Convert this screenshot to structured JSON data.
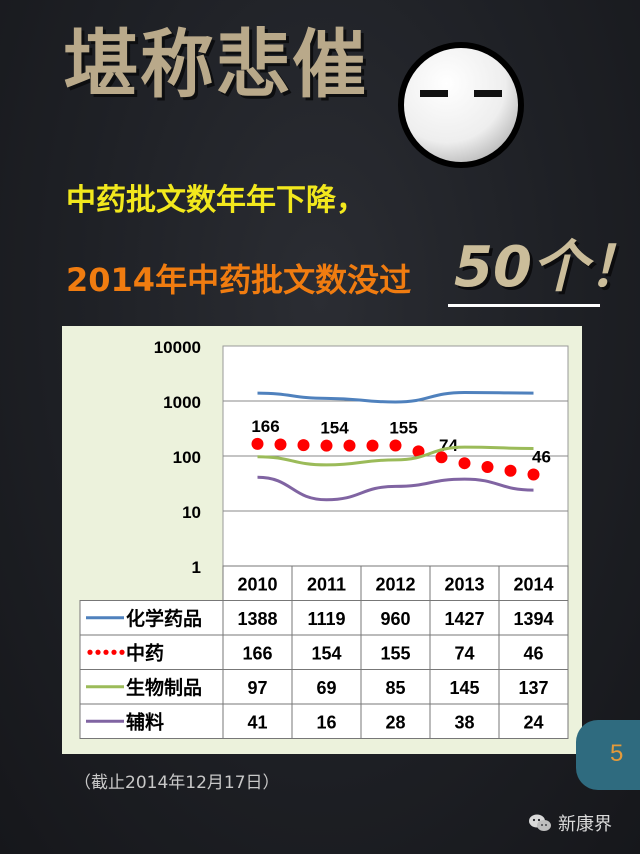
{
  "title": "堪称悲催",
  "subtitle_line1": "中药批文数年年下降，",
  "subtitle_line2": "2014年中药批文数没过",
  "highlight": "50个！",
  "page_number": "5",
  "footnote": "（截止2014年12月17日）",
  "brand": "新康界",
  "colors": {
    "background": "#1e2025",
    "title": "#b9a98a",
    "line1": "#f2e81d",
    "line2": "#f07c10",
    "chart_bg": "#ecf2dc",
    "page_badge": "#2f6b7f"
  },
  "chart_data": {
    "type": "line",
    "y_scale": "log",
    "ylim": [
      1,
      10000
    ],
    "y_ticks": [
      "1",
      "10",
      "100",
      "1000",
      "10000"
    ],
    "categories": [
      "2010",
      "2011",
      "2012",
      "2013",
      "2014"
    ],
    "series": [
      {
        "name": "化学药品",
        "color": "#4f81bd",
        "style": "solid",
        "values": [
          1388,
          1119,
          960,
          1427,
          1394
        ]
      },
      {
        "name": "中药",
        "color": "#ff0000",
        "style": "dotted",
        "values": [
          166,
          154,
          155,
          74,
          46
        ]
      },
      {
        "name": "生物制品",
        "color": "#9bbb59",
        "style": "solid",
        "values": [
          97,
          69,
          85,
          145,
          137
        ]
      },
      {
        "name": "辅料",
        "color": "#8064a2",
        "style": "solid",
        "values": [
          41,
          16,
          28,
          38,
          24
        ]
      }
    ],
    "data_labels": {
      "series": "中药",
      "shown_for": [
        "2010",
        "2011",
        "2012",
        "2013",
        "2014"
      ]
    },
    "grid": true,
    "legend": "data-table-below"
  }
}
